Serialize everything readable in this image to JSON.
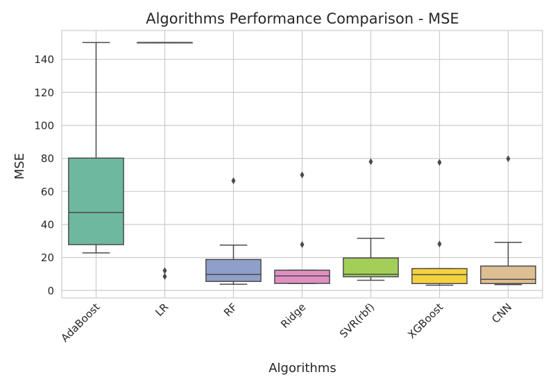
{
  "chart_data": {
    "type": "box",
    "title": "Algorithms Performance Comparison - MSE",
    "xlabel": "Algorithms",
    "ylabel": "MSE",
    "ylim": [
      -4.5,
      157.5
    ],
    "yticks": [
      0,
      20,
      40,
      60,
      80,
      100,
      120,
      140
    ],
    "grid": true,
    "categories": [
      "AdaBoost",
      "LR",
      "RF",
      "Ridge",
      "SVR(rbf)",
      "XGBoost",
      "CNN"
    ],
    "boxes": [
      {
        "name": "AdaBoost",
        "color": "#6fb8a0",
        "whisker_low": 22.8,
        "q1": 27.8,
        "median": 47.3,
        "q3": 80.2,
        "whisker_high": 150.2,
        "outliers": []
      },
      {
        "name": "LR",
        "color": "#ef8e62",
        "whisker_low": 150.2,
        "q1": 150.2,
        "median": 150.2,
        "q3": 150.2,
        "whisker_high": 150.2,
        "outliers": [
          12.0,
          8.5
        ]
      },
      {
        "name": "RF",
        "color": "#8e9fc9",
        "whisker_low": 3.8,
        "q1": 5.5,
        "median": 9.7,
        "q3": 18.8,
        "whisker_high": 27.5,
        "outliers": [
          66.5
        ]
      },
      {
        "name": "Ridge",
        "color": "#e08fc0",
        "whisker_low": 4.2,
        "q1": 4.3,
        "median": 8.8,
        "q3": 12.3,
        "whisker_high": 12.3,
        "outliers": [
          70.0,
          27.8
        ]
      },
      {
        "name": "SVR(rbf)",
        "color": "#a3cf59",
        "whisker_low": 6.2,
        "q1": 8.3,
        "median": 9.8,
        "q3": 19.7,
        "whisker_high": 31.6,
        "outliers": [
          78.0
        ]
      },
      {
        "name": "XGBoost",
        "color": "#f5d33f",
        "whisker_low": 3.2,
        "q1": 4.2,
        "median": 9.6,
        "q3": 13.3,
        "whisker_high": 13.3,
        "outliers": [
          77.6,
          28.2
        ]
      },
      {
        "name": "CNN",
        "color": "#debf93",
        "whisker_low": 3.6,
        "q1": 4.2,
        "median": 6.8,
        "q3": 14.8,
        "whisker_high": 29.2,
        "outliers": [
          79.8
        ]
      }
    ],
    "colors": {
      "grid": "#cccccc",
      "line": "#4a4a4a",
      "frame": "#cccccc"
    }
  }
}
